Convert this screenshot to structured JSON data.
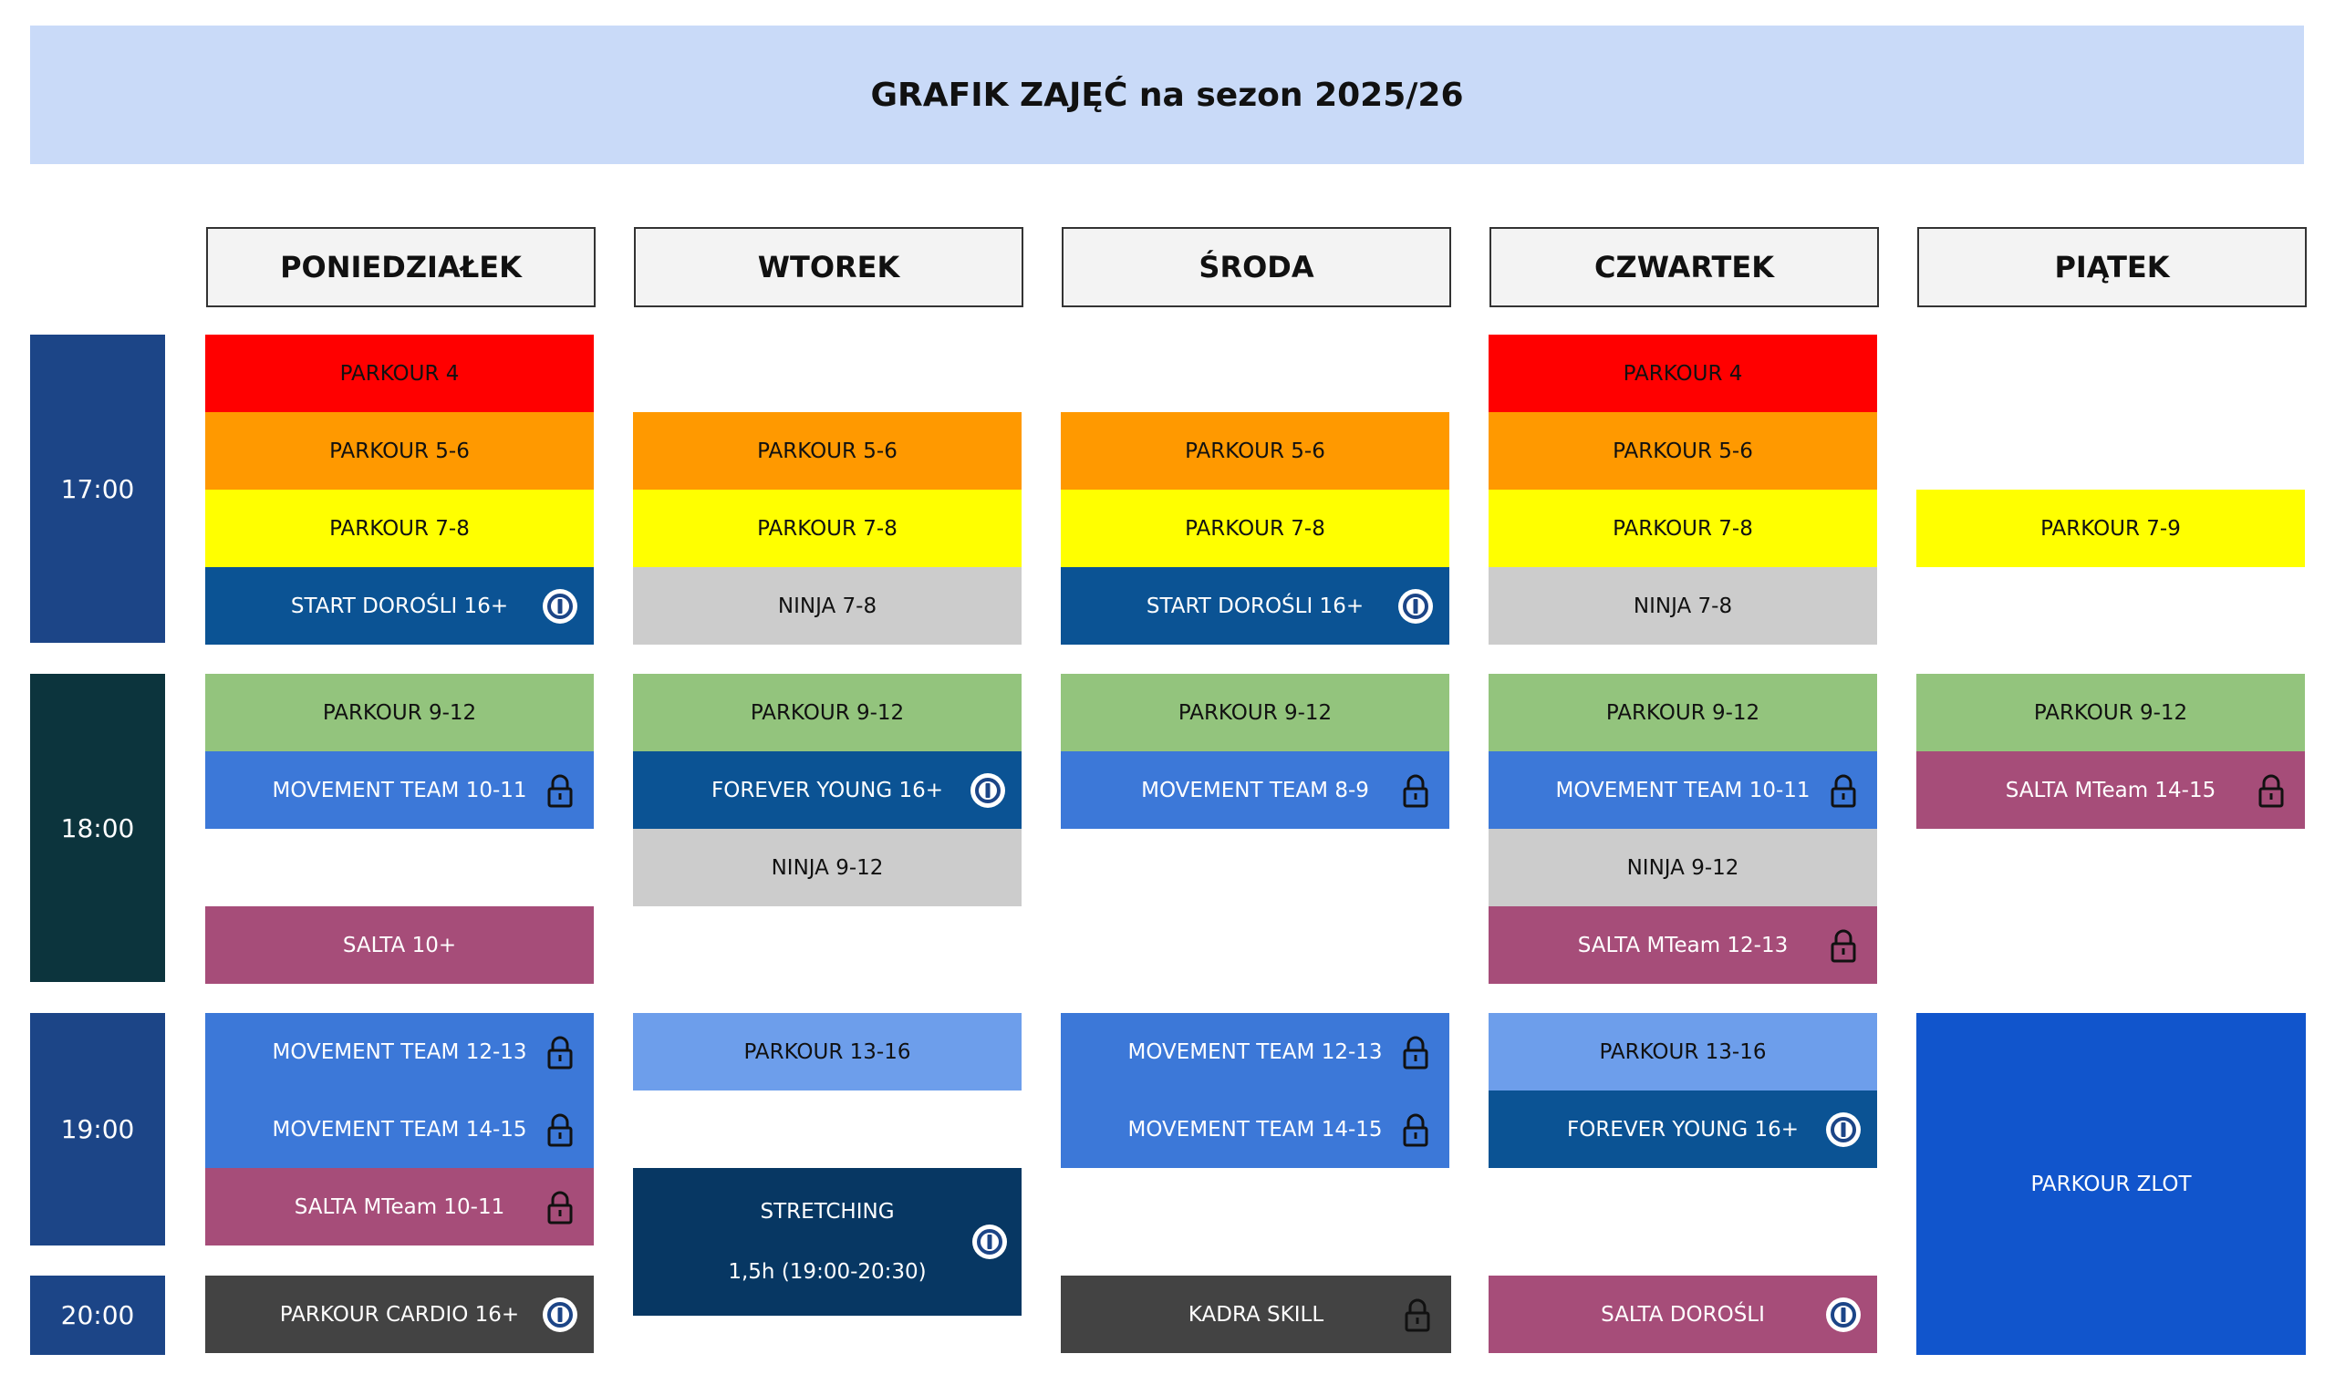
{
  "title": "GRAFIK ZAJĘĆ na sezon 2025/26",
  "days": [
    "PONIEDZIAŁEK",
    "WTOREK",
    "ŚRODA",
    "CZWARTEK",
    "PIĄTEK"
  ],
  "times": [
    "17:00",
    "18:00",
    "19:00",
    "20:00"
  ],
  "colors": {
    "header_bg": "#c9daf8",
    "day_header_bg": "#f3f3f3",
    "time_17": "#1c4587",
    "time_18": "#0c343d",
    "time_19": "#1c4587",
    "time_20": "#1c4587",
    "parkour_4": "#ff0000",
    "parkour_5_6": "#ff9900",
    "parkour_7_8": "#ffff00",
    "start_dorosli": "#0b5394",
    "ninja": "#cccccc",
    "parkour_9_12": "#93c47d",
    "movement_team": "#3c78d8",
    "salta": "#a64d79",
    "parkour_13_16": "#6d9eeb",
    "stretching": "#073763",
    "dark": "#434343",
    "parkour_zlot": "#1155cc"
  },
  "classes": [
    {
      "day": 0,
      "label": "PARKOUR 4",
      "bg": "#ff0000",
      "fg": "#111111",
      "icon": "",
      "slot": "17:00"
    },
    {
      "day": 0,
      "label": "PARKOUR 5-6",
      "bg": "#ff9900",
      "fg": "#111111",
      "icon": "",
      "slot": "17:00"
    },
    {
      "day": 0,
      "label": "PARKOUR 7-8",
      "bg": "#ffff00",
      "fg": "#111111",
      "icon": "",
      "slot": "17:00"
    },
    {
      "day": 0,
      "label": "START DOROŚLI 16+",
      "bg": "#0b5394",
      "fg": "#ffffff",
      "icon": "info-circle-icon",
      "slot": "17:00"
    },
    {
      "day": 0,
      "label": "PARKOUR 9-12",
      "bg": "#93c47d",
      "fg": "#111111",
      "icon": "",
      "slot": "18:00"
    },
    {
      "day": 0,
      "label": "MOVEMENT TEAM 10-11",
      "bg": "#3c78d8",
      "fg": "#ffffff",
      "icon": "lock-icon",
      "slot": "18:00"
    },
    {
      "day": 0,
      "label": "SALTA 10+",
      "bg": "#a64d79",
      "fg": "#ffffff",
      "icon": "",
      "slot": "18:00"
    },
    {
      "day": 0,
      "label": "MOVEMENT TEAM 12-13",
      "bg": "#3c78d8",
      "fg": "#ffffff",
      "icon": "lock-icon",
      "slot": "19:00"
    },
    {
      "day": 0,
      "label": "MOVEMENT TEAM 14-15",
      "bg": "#3c78d8",
      "fg": "#ffffff",
      "icon": "lock-icon",
      "slot": "19:00"
    },
    {
      "day": 0,
      "label": "SALTA MTeam 10-11",
      "bg": "#a64d79",
      "fg": "#ffffff",
      "icon": "lock-icon",
      "slot": "19:00"
    },
    {
      "day": 0,
      "label": "PARKOUR CARDIO 16+",
      "bg": "#434343",
      "fg": "#ffffff",
      "icon": "info-circle-icon",
      "slot": "20:00"
    },
    {
      "day": 1,
      "label": "PARKOUR 5-6",
      "bg": "#ff9900",
      "fg": "#111111",
      "icon": "",
      "slot": "17:00"
    },
    {
      "day": 1,
      "label": "PARKOUR 7-8",
      "bg": "#ffff00",
      "fg": "#111111",
      "icon": "",
      "slot": "17:00"
    },
    {
      "day": 1,
      "label": "NINJA 7-8",
      "bg": "#cccccc",
      "fg": "#111111",
      "icon": "",
      "slot": "17:00"
    },
    {
      "day": 1,
      "label": "PARKOUR 9-12",
      "bg": "#93c47d",
      "fg": "#111111",
      "icon": "",
      "slot": "18:00"
    },
    {
      "day": 1,
      "label": "FOREVER YOUNG 16+",
      "bg": "#0b5394",
      "fg": "#ffffff",
      "icon": "info-circle-icon",
      "slot": "18:00"
    },
    {
      "day": 1,
      "label": "NINJA 9-12",
      "bg": "#cccccc",
      "fg": "#111111",
      "icon": "",
      "slot": "18:00"
    },
    {
      "day": 1,
      "label": "PARKOUR 13-16",
      "bg": "#6d9eeb",
      "fg": "#111111",
      "icon": "",
      "slot": "19:00"
    },
    {
      "day": 1,
      "label": "STRETCHING",
      "sublabel": "1,5h (19:00-20:30)",
      "bg": "#073763",
      "fg": "#ffffff",
      "icon": "info-circle-icon",
      "slot": "19:00"
    },
    {
      "day": 2,
      "label": "PARKOUR 5-6",
      "bg": "#ff9900",
      "fg": "#111111",
      "icon": "",
      "slot": "17:00"
    },
    {
      "day": 2,
      "label": "PARKOUR 7-8",
      "bg": "#ffff00",
      "fg": "#111111",
      "icon": "",
      "slot": "17:00"
    },
    {
      "day": 2,
      "label": "START DOROŚLI 16+",
      "bg": "#0b5394",
      "fg": "#ffffff",
      "icon": "info-circle-icon",
      "slot": "17:00"
    },
    {
      "day": 2,
      "label": "PARKOUR 9-12",
      "bg": "#93c47d",
      "fg": "#111111",
      "icon": "",
      "slot": "18:00"
    },
    {
      "day": 2,
      "label": "MOVEMENT TEAM 8-9",
      "bg": "#3c78d8",
      "fg": "#ffffff",
      "icon": "lock-icon",
      "slot": "18:00"
    },
    {
      "day": 2,
      "label": "MOVEMENT TEAM 12-13",
      "bg": "#3c78d8",
      "fg": "#ffffff",
      "icon": "lock-icon",
      "slot": "19:00"
    },
    {
      "day": 2,
      "label": "MOVEMENT TEAM 14-15",
      "bg": "#3c78d8",
      "fg": "#ffffff",
      "icon": "lock-icon",
      "slot": "19:00"
    },
    {
      "day": 2,
      "label": "KADRA SKILL",
      "bg": "#434343",
      "fg": "#ffffff",
      "icon": "lock-icon",
      "slot": "20:00"
    },
    {
      "day": 3,
      "label": "PARKOUR 4",
      "bg": "#ff0000",
      "fg": "#111111",
      "icon": "",
      "slot": "17:00"
    },
    {
      "day": 3,
      "label": "PARKOUR 5-6",
      "bg": "#ff9900",
      "fg": "#111111",
      "icon": "",
      "slot": "17:00"
    },
    {
      "day": 3,
      "label": "PARKOUR 7-8",
      "bg": "#ffff00",
      "fg": "#111111",
      "icon": "",
      "slot": "17:00"
    },
    {
      "day": 3,
      "label": "NINJA 7-8",
      "bg": "#cccccc",
      "fg": "#111111",
      "icon": "",
      "slot": "17:00"
    },
    {
      "day": 3,
      "label": "PARKOUR 9-12",
      "bg": "#93c47d",
      "fg": "#111111",
      "icon": "",
      "slot": "18:00"
    },
    {
      "day": 3,
      "label": "MOVEMENT TEAM 10-11",
      "bg": "#3c78d8",
      "fg": "#ffffff",
      "icon": "lock-icon",
      "slot": "18:00"
    },
    {
      "day": 3,
      "label": "NINJA 9-12",
      "bg": "#cccccc",
      "fg": "#111111",
      "icon": "",
      "slot": "18:00"
    },
    {
      "day": 3,
      "label": "SALTA MTeam 12-13",
      "bg": "#a64d79",
      "fg": "#ffffff",
      "icon": "lock-icon",
      "slot": "18:00"
    },
    {
      "day": 3,
      "label": "PARKOUR 13-16",
      "bg": "#6d9eeb",
      "fg": "#111111",
      "icon": "",
      "slot": "19:00"
    },
    {
      "day": 3,
      "label": "FOREVER YOUNG 16+",
      "bg": "#0b5394",
      "fg": "#ffffff",
      "icon": "info-circle-icon",
      "slot": "19:00"
    },
    {
      "day": 3,
      "label": "SALTA DOROŚLI",
      "bg": "#a64d79",
      "fg": "#ffffff",
      "icon": "info-circle-icon",
      "slot": "20:00"
    },
    {
      "day": 4,
      "label": "PARKOUR 7-9",
      "bg": "#ffff00",
      "fg": "#111111",
      "icon": "",
      "slot": "17:00"
    },
    {
      "day": 4,
      "label": "PARKOUR 9-12",
      "bg": "#93c47d",
      "fg": "#111111",
      "icon": "",
      "slot": "18:00"
    },
    {
      "day": 4,
      "label": "SALTA MTeam 14-15",
      "bg": "#a64d79",
      "fg": "#ffffff",
      "icon": "lock-icon",
      "slot": "18:00"
    },
    {
      "day": 4,
      "label": "PARKOUR ZLOT",
      "bg": "#1155cc",
      "fg": "#ffffff",
      "icon": "",
      "slot": "19:00"
    }
  ]
}
